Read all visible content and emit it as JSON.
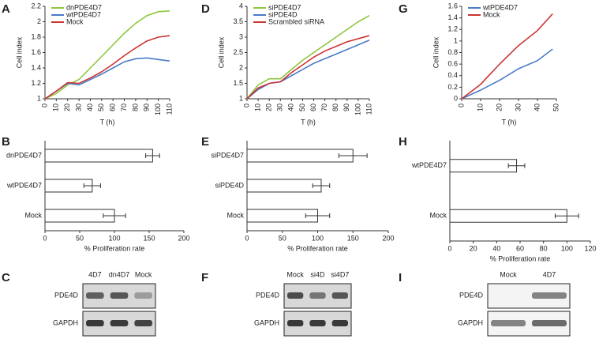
{
  "chart_data": [
    {
      "type": "line",
      "panel": "A",
      "xlabel": "T (h)",
      "ylabel": "Cell index",
      "x": [
        0,
        10,
        20,
        30,
        40,
        50,
        60,
        70,
        80,
        90,
        100,
        110
      ],
      "xlim": [
        0,
        110
      ],
      "ylim": [
        1,
        2.2
      ],
      "xticks": [
        0,
        10,
        20,
        30,
        40,
        50,
        60,
        70,
        80,
        90,
        100,
        110
      ],
      "yticks": [
        1,
        1.2,
        1.4,
        1.6,
        1.8,
        2,
        2.2
      ],
      "series": [
        {
          "name": "dnPDE4D7",
          "color": "#8dc63f",
          "values": [
            1,
            1.07,
            1.18,
            1.25,
            1.4,
            1.55,
            1.7,
            1.85,
            1.98,
            2.08,
            2.13,
            2.14
          ]
        },
        {
          "name": "wtPDE4D7",
          "color": "#4a7cc7",
          "values": [
            1,
            1.1,
            1.2,
            1.18,
            1.25,
            1.32,
            1.4,
            1.48,
            1.52,
            1.53,
            1.51,
            1.49
          ]
        },
        {
          "name": "Mock",
          "color": "#cc3333",
          "values": [
            1,
            1.1,
            1.21,
            1.2,
            1.27,
            1.35,
            1.45,
            1.56,
            1.66,
            1.75,
            1.8,
            1.82
          ]
        }
      ]
    },
    {
      "type": "line",
      "panel": "D",
      "xlabel": "T (h)",
      "ylabel": "Cell index",
      "x": [
        0,
        10,
        20,
        30,
        40,
        50,
        60,
        70,
        80,
        90,
        100,
        110
      ],
      "xlim": [
        0,
        110
      ],
      "ylim": [
        1,
        4
      ],
      "xticks": [
        0,
        10,
        20,
        30,
        40,
        50,
        60,
        70,
        80,
        90,
        100,
        110
      ],
      "yticks": [
        1,
        1.5,
        2,
        2.5,
        3,
        3.5,
        4
      ],
      "series": [
        {
          "name": "siPDE4D7",
          "color": "#8dc63f",
          "values": [
            1,
            1.45,
            1.65,
            1.65,
            1.95,
            2.25,
            2.5,
            2.75,
            3,
            3.25,
            3.5,
            3.7
          ]
        },
        {
          "name": "siPDE4D",
          "color": "#4a7cc7",
          "values": [
            1,
            1.3,
            1.5,
            1.55,
            1.75,
            1.95,
            2.15,
            2.3,
            2.45,
            2.6,
            2.75,
            2.9
          ]
        },
        {
          "name": "Scrambled siRNA",
          "color": "#cc3333",
          "values": [
            1,
            1.35,
            1.5,
            1.55,
            1.85,
            2.1,
            2.35,
            2.55,
            2.7,
            2.85,
            2.95,
            3.05
          ]
        }
      ]
    },
    {
      "type": "line",
      "panel": "G",
      "xlabel": "T (h)",
      "ylabel": "Cell index",
      "x": [
        0,
        10,
        20,
        30,
        40,
        48
      ],
      "xlim": [
        0,
        50
      ],
      "ylim": [
        0,
        1.6
      ],
      "xticks": [
        0,
        10,
        20,
        30,
        40,
        50
      ],
      "yticks": [
        0,
        0.2,
        0.4,
        0.6,
        0.8,
        1,
        1.2,
        1.4,
        1.6
      ],
      "series": [
        {
          "name": "wtPDE4D7",
          "color": "#4a7cc7",
          "values": [
            0,
            0.15,
            0.32,
            0.52,
            0.66,
            0.86
          ]
        },
        {
          "name": "Mock",
          "color": "#cc3333",
          "values": [
            0,
            0.25,
            0.6,
            0.92,
            1.18,
            1.47
          ]
        }
      ]
    },
    {
      "type": "hbar",
      "panel": "B",
      "xlabel": "% Proliferation rate",
      "categories": [
        "dnPDE4D7",
        "wtPDE4D7",
        "Mock"
      ],
      "values": [
        155,
        68,
        100
      ],
      "errors": [
        10,
        12,
        16
      ],
      "color": "#ffffff",
      "xlim": [
        0,
        200
      ],
      "xticks": [
        0,
        50,
        100,
        150,
        200
      ]
    },
    {
      "type": "hbar",
      "panel": "E",
      "xlabel": "% Proliferation rate",
      "categories": [
        "siPDE4D7",
        "siPDE4D",
        "Mock"
      ],
      "values": [
        150,
        105,
        100
      ],
      "errors": [
        20,
        12,
        17
      ],
      "color": "#ffffff",
      "xlim": [
        0,
        200
      ],
      "xticks": [
        0,
        50,
        100,
        150,
        200
      ]
    },
    {
      "type": "hbar",
      "panel": "H",
      "xlabel": "% Proliferation rate",
      "categories": [
        "wtPDE4D7",
        "Mock"
      ],
      "values": [
        57,
        100
      ],
      "errors": [
        7,
        10
      ],
      "color": "#ffffff",
      "xlim": [
        0,
        120
      ],
      "xticks": [
        0,
        20,
        40,
        60,
        80,
        100,
        120
      ]
    }
  ],
  "blots": [
    {
      "panel": "C",
      "columns": [
        "4D7",
        "dn4D7",
        "Mock"
      ],
      "rows": [
        "PDE4D",
        "GAPDH"
      ]
    },
    {
      "panel": "F",
      "columns": [
        "Mock",
        "si4D",
        "si4D7"
      ],
      "rows": [
        "PDE4D",
        "GAPDH"
      ]
    },
    {
      "panel": "I",
      "columns": [
        "Mock",
        "4D7"
      ],
      "rows": [
        "PDE4D",
        "GAPDH"
      ]
    }
  ]
}
